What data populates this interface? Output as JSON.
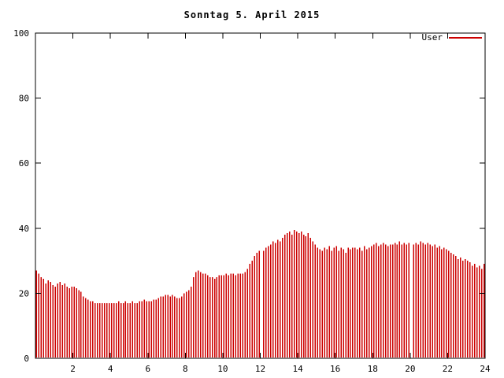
{
  "chart_data": {
    "type": "bar",
    "title": "Sonntag 5. April 2015",
    "xlabel": "",
    "ylabel": "",
    "xlim": [
      0,
      24
    ],
    "ylim": [
      0,
      100
    ],
    "xticks": [
      2,
      4,
      6,
      8,
      10,
      12,
      14,
      16,
      18,
      20,
      22,
      24
    ],
    "yticks": [
      0,
      20,
      40,
      60,
      80,
      100
    ],
    "grid": false,
    "legend_position": "top-right",
    "sample_interval_hours": 0.125,
    "series": [
      {
        "name": "User",
        "color": "#cc0000",
        "style": "impulses",
        "values": [
          27,
          26,
          25,
          24.5,
          23,
          24,
          23.5,
          22.5,
          22,
          23,
          23.5,
          22.5,
          23,
          22,
          21.5,
          22,
          22,
          21.5,
          21,
          20.5,
          19,
          18.5,
          18,
          17.5,
          17.5,
          17,
          17,
          17,
          17,
          17,
          17,
          17,
          17,
          17,
          17,
          17.5,
          17,
          17,
          17.5,
          17,
          17,
          17.5,
          17,
          17,
          17.5,
          17.5,
          18,
          17.5,
          17.5,
          17.5,
          18,
          18,
          18.5,
          19,
          19,
          19.5,
          19.5,
          19,
          19.5,
          19,
          18.5,
          18.5,
          19,
          20,
          20.5,
          21,
          22,
          25,
          26.5,
          27,
          26.5,
          26,
          26,
          25.5,
          25,
          25,
          24.5,
          25,
          25.5,
          25.5,
          25.5,
          26,
          25.5,
          26,
          26,
          25.5,
          26,
          26,
          26,
          26.5,
          27.5,
          29,
          30,
          31.5,
          32.5,
          33,
          0,
          33,
          34,
          34.5,
          35,
          36,
          35.5,
          36.5,
          36,
          37,
          38,
          38.5,
          39,
          38,
          39.5,
          39,
          38.5,
          39,
          38,
          37.5,
          38.5,
          37,
          36,
          35,
          34,
          33.5,
          33,
          34,
          33.5,
          34.5,
          33,
          34,
          34.5,
          33,
          34,
          33.5,
          32.5,
          34,
          33.5,
          34,
          34,
          33.5,
          34,
          33,
          34.5,
          33.5,
          34,
          34.5,
          35,
          35.5,
          34.5,
          35,
          35.5,
          35,
          34.5,
          35,
          35,
          35.5,
          35,
          36,
          35,
          35.5,
          35,
          35.5,
          0,
          35,
          35.5,
          35,
          36,
          35.5,
          35,
          35.5,
          35,
          34.5,
          35,
          34,
          34.5,
          33.5,
          34,
          33.5,
          33,
          32.5,
          32,
          31.5,
          30.5,
          31,
          30,
          30.5,
          30,
          29.5,
          28.5,
          29,
          28,
          28.5,
          27.5,
          29
        ]
      }
    ],
    "colors": {
      "axis": "#000000",
      "background": "#ffffff",
      "series_user": "#cc0000"
    }
  }
}
